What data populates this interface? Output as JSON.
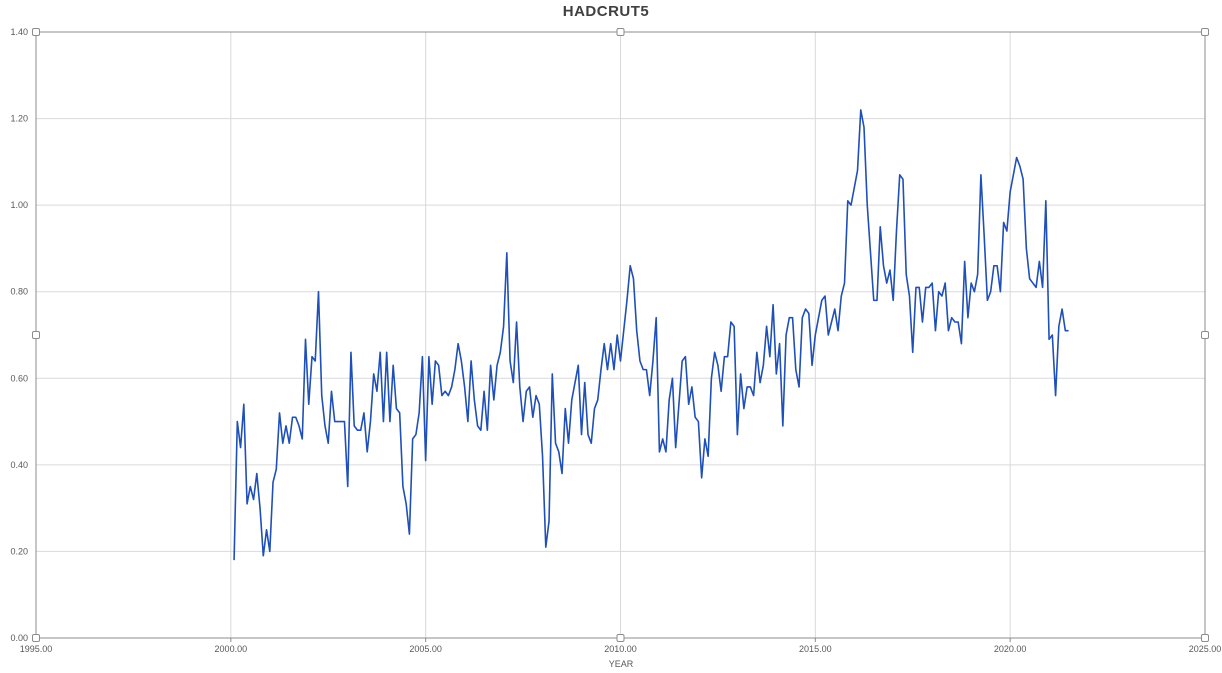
{
  "chart_data": {
    "type": "line",
    "title": "HADCRUT5",
    "xlabel": "YEAR",
    "ylabel": "",
    "xlim": [
      1995,
      2025
    ],
    "ylim": [
      0,
      1.4
    ],
    "x_ticks": [
      "1995.00",
      "2000.00",
      "2005.00",
      "2010.00",
      "2015.00",
      "2020.00",
      "2025.00"
    ],
    "y_ticks": [
      "0.00",
      "0.20",
      "0.40",
      "0.60",
      "0.80",
      "1.00",
      "1.20",
      "1.40"
    ],
    "grid": true,
    "legend": "none",
    "series_color": "#1f4fb8",
    "series": [
      {
        "start": 2000.083,
        "step": 0.08333,
        "values": [
          0.18,
          0.5,
          0.44,
          0.54,
          0.31,
          0.35,
          0.32,
          0.38,
          0.3,
          0.19,
          0.25,
          0.2,
          0.36,
          0.39,
          0.52,
          0.45,
          0.49,
          0.45,
          0.51,
          0.51,
          0.49,
          0.46,
          0.69,
          0.54,
          0.65,
          0.64,
          0.8,
          0.56,
          0.49,
          0.45,
          0.57,
          0.5,
          0.5,
          0.5,
          0.5,
          0.35,
          0.66,
          0.49,
          0.48,
          0.48,
          0.52,
          0.43,
          0.5,
          0.61,
          0.57,
          0.66,
          0.5,
          0.66,
          0.5,
          0.63,
          0.53,
          0.52,
          0.35,
          0.31,
          0.24,
          0.46,
          0.47,
          0.52,
          0.65,
          0.41,
          0.65,
          0.54,
          0.64,
          0.63,
          0.56,
          0.57,
          0.56,
          0.58,
          0.62,
          0.68,
          0.64,
          0.58,
          0.5,
          0.64,
          0.55,
          0.49,
          0.48,
          0.57,
          0.48,
          0.63,
          0.55,
          0.63,
          0.66,
          0.72,
          0.89,
          0.64,
          0.59,
          0.73,
          0.58,
          0.5,
          0.57,
          0.58,
          0.51,
          0.56,
          0.54,
          0.42,
          0.21,
          0.27,
          0.61,
          0.45,
          0.43,
          0.38,
          0.53,
          0.45,
          0.55,
          0.59,
          0.63,
          0.47,
          0.59,
          0.47,
          0.45,
          0.53,
          0.55,
          0.62,
          0.68,
          0.62,
          0.68,
          0.62,
          0.7,
          0.64,
          0.71,
          0.78,
          0.86,
          0.83,
          0.71,
          0.64,
          0.62,
          0.62,
          0.56,
          0.64,
          0.74,
          0.43,
          0.46,
          0.43,
          0.55,
          0.6,
          0.44,
          0.54,
          0.64,
          0.65,
          0.54,
          0.58,
          0.51,
          0.5,
          0.37,
          0.46,
          0.42,
          0.6,
          0.66,
          0.63,
          0.57,
          0.65,
          0.65,
          0.73,
          0.72,
          0.47,
          0.61,
          0.53,
          0.58,
          0.58,
          0.56,
          0.66,
          0.59,
          0.63,
          0.72,
          0.65,
          0.77,
          0.61,
          0.68,
          0.49,
          0.7,
          0.74,
          0.74,
          0.62,
          0.58,
          0.74,
          0.76,
          0.75,
          0.63,
          0.7,
          0.74,
          0.78,
          0.79,
          0.7,
          0.73,
          0.76,
          0.71,
          0.79,
          0.82,
          1.01,
          1.0,
          1.04,
          1.08,
          1.22,
          1.18,
          1.0,
          0.89,
          0.78,
          0.78,
          0.95,
          0.86,
          0.82,
          0.85,
          0.78,
          0.94,
          1.07,
          1.06,
          0.84,
          0.79,
          0.66,
          0.81,
          0.81,
          0.73,
          0.81,
          0.81,
          0.82,
          0.71,
          0.8,
          0.79,
          0.82,
          0.71,
          0.74,
          0.73,
          0.73,
          0.68,
          0.87,
          0.74,
          0.82,
          0.8,
          0.84,
          1.07,
          0.93,
          0.78,
          0.8,
          0.86,
          0.86,
          0.8,
          0.96,
          0.94,
          1.03,
          1.07,
          1.11,
          1.09,
          1.06,
          0.9,
          0.83,
          0.82,
          0.81,
          0.87,
          0.81,
          1.01,
          0.69,
          0.7,
          0.56,
          0.72,
          0.76,
          0.71,
          0.71
        ]
      }
    ]
  }
}
